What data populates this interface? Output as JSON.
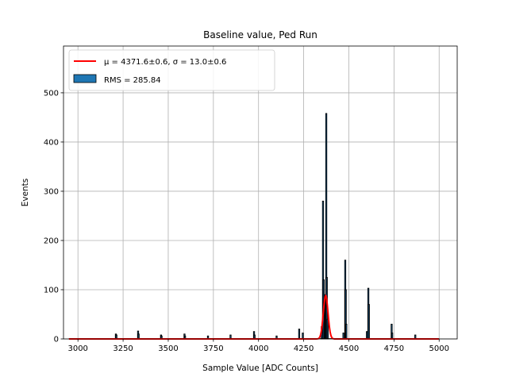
{
  "chart_data": {
    "type": "bar",
    "title": "Baseline value, Ped Run",
    "xlabel": "Sample Value [ADC Counts]",
    "ylabel": "Events",
    "xlim": [
      2920,
      5100
    ],
    "ylim": [
      0,
      595
    ],
    "x_ticks": [
      3000,
      3250,
      3500,
      3750,
      4000,
      4250,
      4500,
      4750,
      5000
    ],
    "y_ticks": [
      0,
      100,
      200,
      300,
      400,
      500
    ],
    "grid": true,
    "legend_position": "top-left",
    "histogram": {
      "name": "RMS = 285.84",
      "color": "#1f77b4",
      "edge_color": "#000000",
      "spikes": [
        {
          "x": 3210,
          "y": 10
        },
        {
          "x": 3213,
          "y": 8
        },
        {
          "x": 3333,
          "y": 16
        },
        {
          "x": 3336,
          "y": 10
        },
        {
          "x": 3460,
          "y": 8
        },
        {
          "x": 3463,
          "y": 6
        },
        {
          "x": 3590,
          "y": 10
        },
        {
          "x": 3593,
          "y": 6
        },
        {
          "x": 3720,
          "y": 6
        },
        {
          "x": 3845,
          "y": 8
        },
        {
          "x": 3975,
          "y": 15
        },
        {
          "x": 3978,
          "y": 8
        },
        {
          "x": 4100,
          "y": 6
        },
        {
          "x": 4225,
          "y": 20
        },
        {
          "x": 4245,
          "y": 12
        },
        {
          "x": 4350,
          "y": 25
        },
        {
          "x": 4357,
          "y": 280
        },
        {
          "x": 4361,
          "y": 120
        },
        {
          "x": 4367,
          "y": 90
        },
        {
          "x": 4371,
          "y": 80
        },
        {
          "x": 4375,
          "y": 458
        },
        {
          "x": 4378,
          "y": 125
        },
        {
          "x": 4383,
          "y": 40
        },
        {
          "x": 4470,
          "y": 12
        },
        {
          "x": 4480,
          "y": 160
        },
        {
          "x": 4483,
          "y": 100
        },
        {
          "x": 4486,
          "y": 30
        },
        {
          "x": 4600,
          "y": 15
        },
        {
          "x": 4608,
          "y": 103
        },
        {
          "x": 4611,
          "y": 70
        },
        {
          "x": 4737,
          "y": 30
        },
        {
          "x": 4740,
          "y": 12
        },
        {
          "x": 4868,
          "y": 8
        }
      ]
    },
    "fit": {
      "name": "μ = 4371.6±0.6, σ = 13.0±0.6",
      "color": "#ff0000",
      "mu": 4371.6,
      "sigma": 13.0,
      "amplitude": 88,
      "x_range": [
        2950,
        5000
      ]
    }
  }
}
